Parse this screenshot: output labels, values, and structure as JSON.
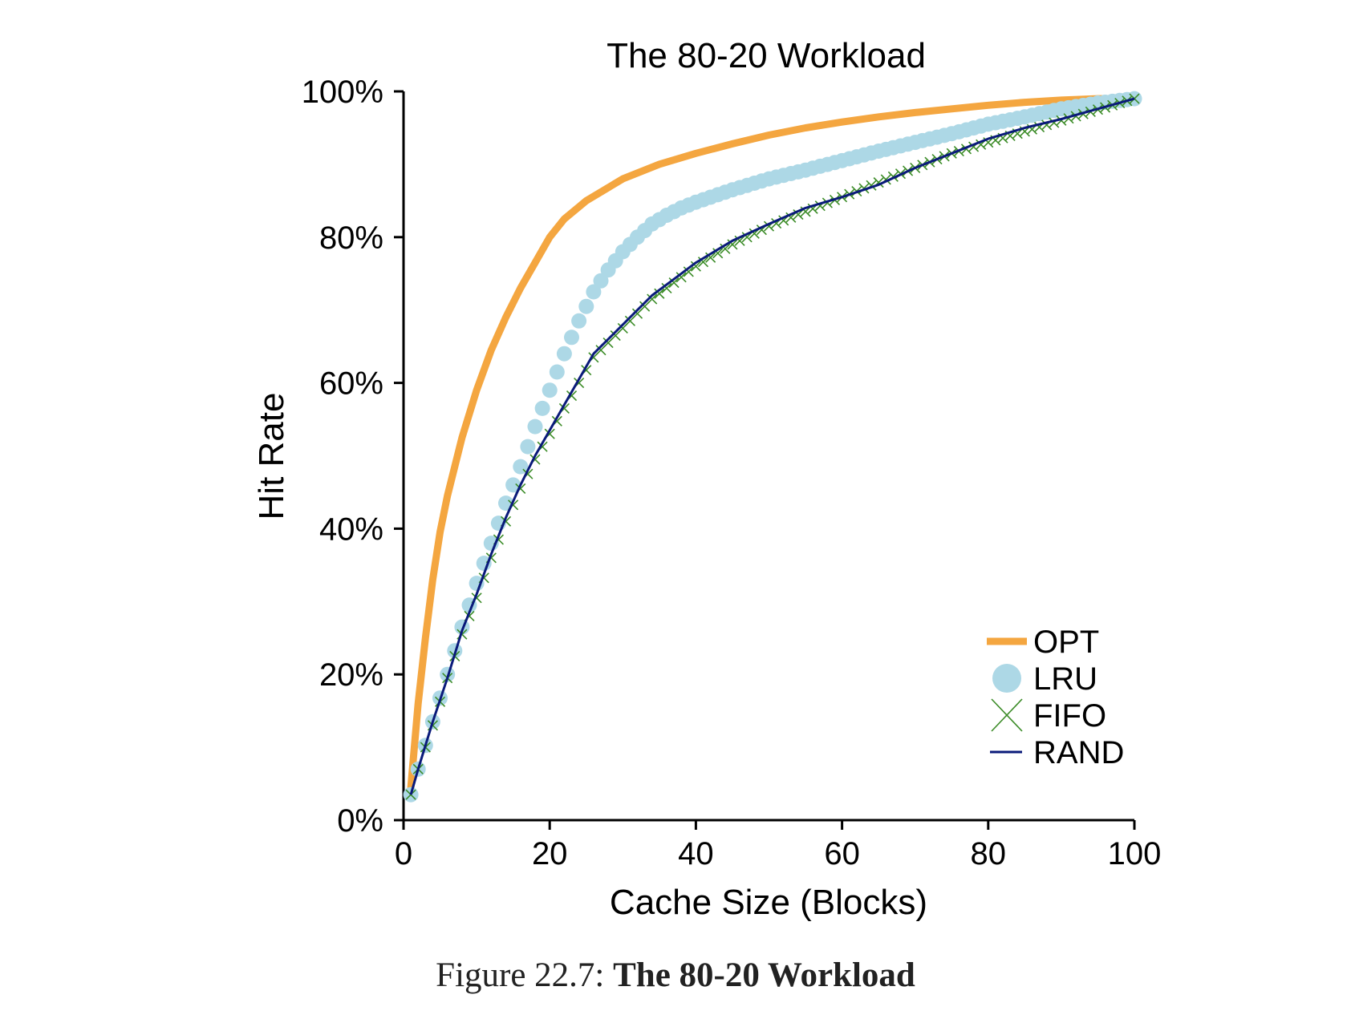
{
  "chart_data": {
    "type": "line",
    "title": "The 80-20 Workload",
    "xlabel": "Cache Size (Blocks)",
    "ylabel": "Hit Rate",
    "xlim": [
      0,
      100
    ],
    "ylim": [
      0,
      100
    ],
    "x_ticks": [
      "0",
      "20",
      "40",
      "60",
      "80",
      "100"
    ],
    "y_ticks": [
      "0%",
      "20%",
      "40%",
      "60%",
      "80%",
      "100%"
    ],
    "grid": false,
    "legend_position": "bottom-right",
    "series": [
      {
        "name": "OPT",
        "style": "thick-line",
        "color": "#f4a640",
        "x": [
          1,
          2,
          3,
          4,
          5,
          6,
          8,
          10,
          12,
          14,
          16,
          18,
          20,
          22,
          25,
          30,
          35,
          40,
          45,
          50,
          55,
          60,
          65,
          70,
          75,
          80,
          85,
          90,
          95,
          100
        ],
        "y": [
          4.5,
          16,
          25,
          33,
          39.5,
          44.5,
          52.5,
          59,
          64.5,
          69,
          73,
          76.5,
          80,
          82.5,
          85,
          88,
          90,
          91.5,
          92.8,
          94,
          95,
          95.8,
          96.5,
          97.1,
          97.6,
          98.1,
          98.5,
          98.8,
          99,
          99
        ]
      },
      {
        "name": "LRU",
        "style": "circle-markers",
        "color": "#add8e6",
        "x": [
          1,
          2,
          4,
          6,
          8,
          10,
          12,
          14,
          16,
          18,
          20,
          22,
          24,
          26,
          28,
          30,
          32,
          34,
          36,
          38,
          40,
          45,
          50,
          55,
          60,
          65,
          70,
          75,
          80,
          85,
          90,
          95,
          100
        ],
        "y": [
          3.5,
          7,
          13.5,
          20,
          26.5,
          32.5,
          38,
          43.5,
          48.5,
          54,
          59,
          64,
          68.5,
          72.5,
          75.5,
          78,
          80,
          81.8,
          83,
          84,
          84.8,
          86.5,
          88,
          89.2,
          90.5,
          91.8,
          93,
          94.2,
          95.5,
          96.5,
          97.6,
          98.4,
          99
        ]
      },
      {
        "name": "FIFO",
        "style": "x-markers",
        "color": "#3c8c28",
        "x": [
          1,
          2,
          4,
          6,
          8,
          10,
          12,
          14,
          16,
          18,
          20,
          22,
          24,
          26,
          28,
          30,
          32,
          34,
          36,
          38,
          40,
          45,
          50,
          55,
          60,
          65,
          70,
          75,
          80,
          85,
          90,
          95,
          100
        ],
        "y": [
          3.5,
          7,
          13,
          19.5,
          25.5,
          30.5,
          36,
          41,
          45.5,
          49.5,
          53,
          56.5,
          60,
          63.5,
          65.5,
          67.5,
          69.5,
          71.5,
          73,
          74.5,
          76,
          79,
          81.5,
          83.5,
          85.5,
          87.5,
          89.5,
          91.5,
          93,
          94.5,
          96,
          97.5,
          99
        ]
      },
      {
        "name": "RAND",
        "style": "thin-line",
        "color": "#0a1a7a",
        "x": [
          1,
          2,
          4,
          6,
          8,
          10,
          12,
          14,
          16,
          18,
          20,
          22,
          24,
          26,
          28,
          30,
          32,
          34,
          36,
          38,
          40,
          45,
          50,
          55,
          60,
          65,
          70,
          75,
          80,
          85,
          90,
          95,
          100
        ],
        "y": [
          3.5,
          7,
          13.5,
          19.5,
          26,
          31,
          36.5,
          41.5,
          46,
          50,
          53.5,
          57,
          60.5,
          64,
          66,
          68,
          70,
          72,
          73.5,
          75,
          76.5,
          79.5,
          81.8,
          84,
          85.5,
          87.2,
          89.5,
          91.5,
          93.5,
          95,
          96.2,
          97.6,
          99
        ]
      }
    ]
  },
  "caption": {
    "prefix": "Figure 22.7:",
    "title": "The 80-20 Workload"
  }
}
